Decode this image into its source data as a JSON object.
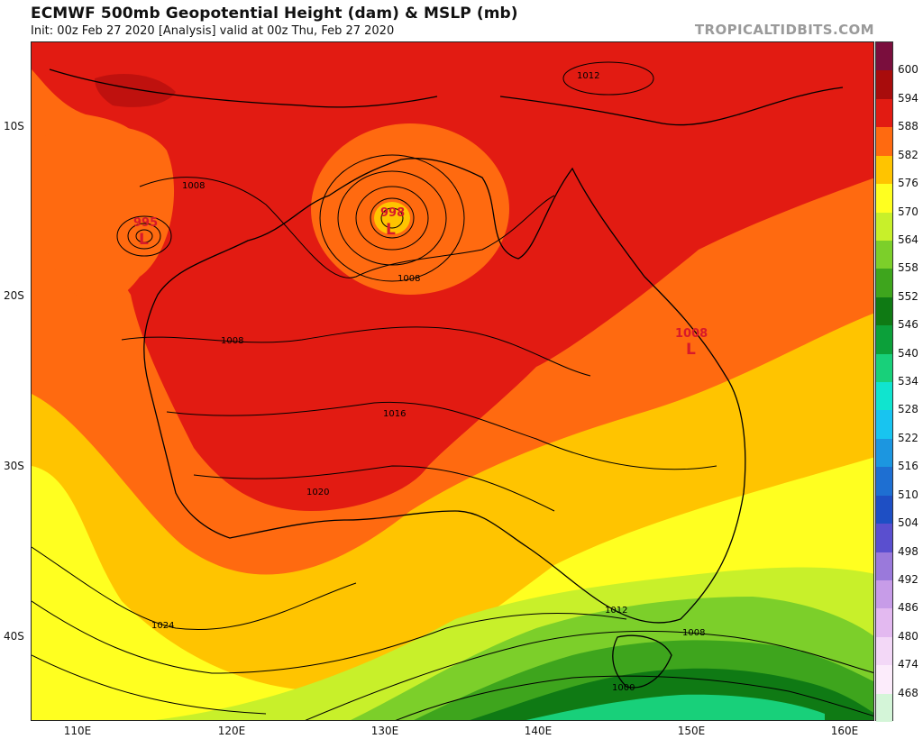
{
  "header": {
    "title": "ECMWF 500mb Geopotential Height (dam) & MSLP (mb)",
    "subtitle": "Init: 00z Feb 27 2020   [Analysis]   valid at 00z Thu, Feb 27 2020",
    "credit": "TROPICALTIDBITS.COM"
  },
  "axes": {
    "lat_labels": [
      "10S",
      "20S",
      "30S",
      "40S"
    ],
    "lon_labels": [
      "110E",
      "120E",
      "130E",
      "140E",
      "150E",
      "160E"
    ]
  },
  "colorbar": {
    "labels": [
      "600",
      "594",
      "588",
      "582",
      "576",
      "570",
      "564",
      "558",
      "552",
      "546",
      "540",
      "534",
      "528",
      "522",
      "516",
      "510",
      "504",
      "498",
      "492",
      "486",
      "480",
      "474",
      "468"
    ],
    "colors": [
      "#7a0e3d",
      "#a80c0c",
      "#e21b12",
      "#ff6a10",
      "#ffc400",
      "#ffff20",
      "#c8f02a",
      "#7ccf2a",
      "#3ea51d",
      "#0f7a14",
      "#0ca03a",
      "#18d07a",
      "#10e4cf",
      "#18c4f0",
      "#1c96e0",
      "#1e6fd2",
      "#1e4fc4",
      "#5a4fcf",
      "#9a79db",
      "#c79ce8",
      "#e3b9f0",
      "#f3d8f7",
      "#fcecfb",
      "#d4f5d8"
    ]
  },
  "annotations": {
    "lows": [
      {
        "value": "995",
        "symbol": "L"
      },
      {
        "value": "998",
        "symbol": "L"
      },
      {
        "value": "1008",
        "symbol": "L"
      }
    ],
    "isobars": [
      "1012",
      "1008",
      "1008",
      "1008",
      "1016",
      "1020",
      "1024",
      "1012",
      "1008",
      "1000"
    ]
  }
}
